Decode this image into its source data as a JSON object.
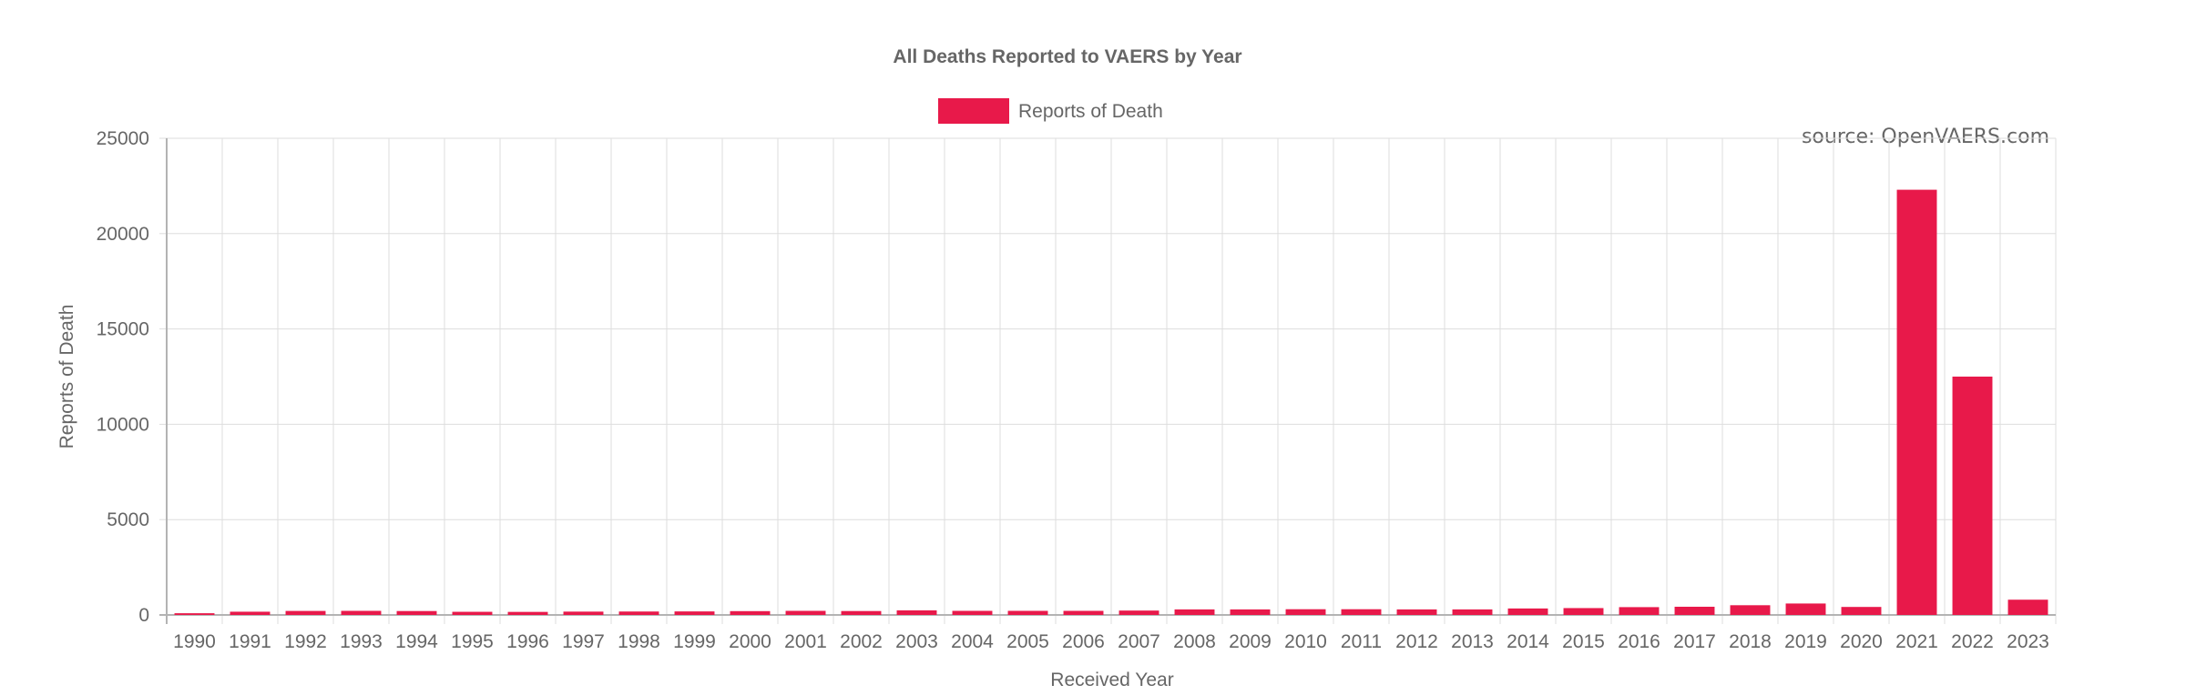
{
  "chart_data": {
    "type": "bar",
    "title": "All Deaths Reported to VAERS by Year",
    "xlabel": "Received Year",
    "ylabel": "Reports of Death",
    "ylim": [
      0,
      25000
    ],
    "yticks": [
      "0",
      "5000",
      "10000",
      "15000",
      "20000",
      "25000"
    ],
    "grid": true,
    "legend_position": "top-center",
    "source_annotation": "source: OpenVAERS.com",
    "color": "#e8194a",
    "categories": [
      "1990",
      "1991",
      "1992",
      "1993",
      "1994",
      "1995",
      "1996",
      "1997",
      "1998",
      "1999",
      "2000",
      "2001",
      "2002",
      "2003",
      "2004",
      "2005",
      "2006",
      "2007",
      "2008",
      "2009",
      "2010",
      "2011",
      "2012",
      "2013",
      "2014",
      "2015",
      "2016",
      "2017",
      "2018",
      "2019",
      "2020",
      "2021",
      "2022",
      "2023"
    ],
    "series": [
      {
        "name": "Reports of Death",
        "values": [
          90,
          170,
          210,
          215,
          205,
          165,
          160,
          175,
          180,
          185,
          200,
          215,
          205,
          240,
          215,
          215,
          215,
          230,
          290,
          290,
          300,
          300,
          290,
          290,
          340,
          360,
          410,
          430,
          510,
          600,
          420,
          22300,
          12500,
          800
        ]
      }
    ]
  }
}
